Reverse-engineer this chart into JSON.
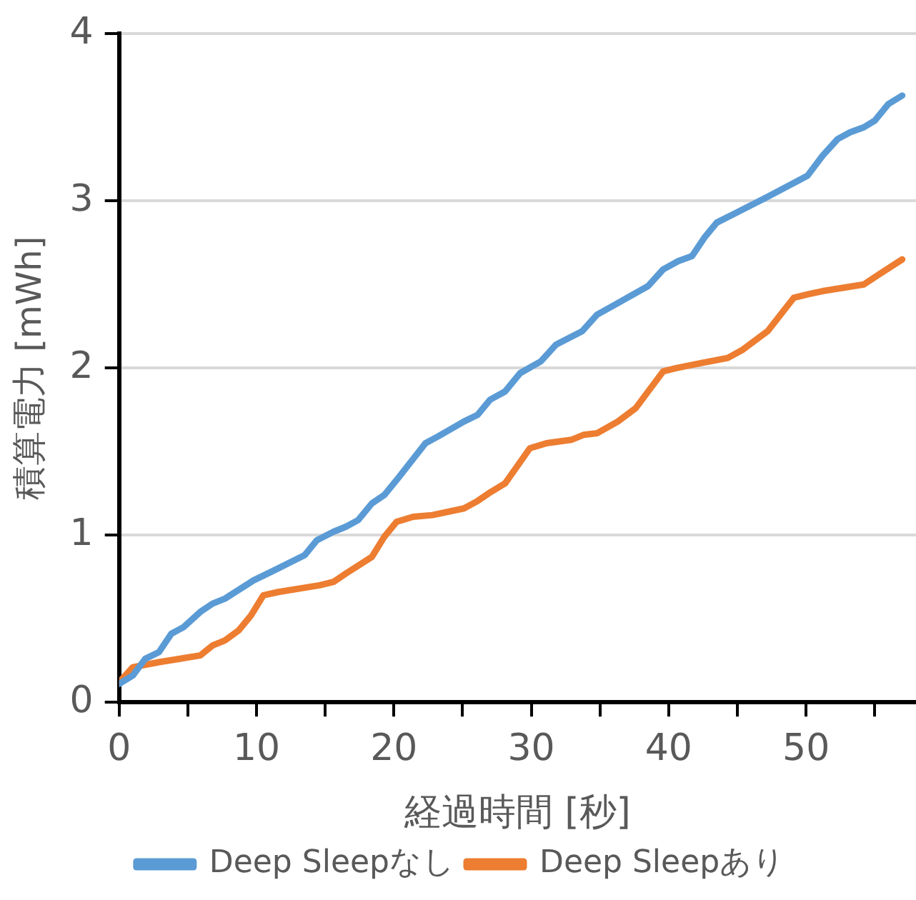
{
  "chart_data": {
    "type": "line",
    "xlabel": "経過時間 [秒]",
    "ylabel": "積算電力 [mWh]",
    "xlim": [
      0,
      58
    ],
    "xticks": [
      0,
      {
        "value": 5,
        "label": null
      },
      10,
      {
        "value": 15,
        "label": null
      },
      20,
      {
        "value": 25,
        "label": null
      },
      30,
      {
        "value": 35,
        "label": null
      },
      40,
      {
        "value": 45,
        "label": null
      },
      50,
      {
        "value": 55,
        "label": null
      }
    ],
    "ylim": [
      0,
      4
    ],
    "yticks": [
      0,
      1,
      2,
      3,
      4
    ],
    "grid": "y",
    "legend": "bottom",
    "marker": "none",
    "line_style": "solid",
    "series": [
      {
        "name": "Deep Sleepなし",
        "color": "#5b9bd5",
        "x": [
          0,
          1.0,
          1.9,
          2.9,
          3.8,
          4.7,
          5.9,
          6.8,
          7.7,
          9.8,
          11.3,
          13.5,
          14.4,
          15.6,
          16.5,
          17.4,
          18.4,
          19.3,
          20.2,
          22.3,
          23.2,
          25.1,
          26.1,
          27.0,
          28.1,
          29.2,
          30.7,
          31.8,
          33.7,
          34.8,
          35.9,
          38.5,
          39.6,
          40.7,
          41.7,
          42.6,
          43.5,
          44.7,
          47.1,
          50.1,
          51.2,
          52.3,
          53.2,
          54.2,
          55.0,
          56.0,
          57.0
        ],
        "values": [
          0.11,
          0.16,
          0.26,
          0.3,
          0.41,
          0.45,
          0.54,
          0.59,
          0.62,
          0.73,
          0.79,
          0.88,
          0.97,
          1.02,
          1.05,
          1.09,
          1.19,
          1.24,
          1.33,
          1.55,
          1.59,
          1.68,
          1.72,
          1.81,
          1.86,
          1.97,
          2.04,
          2.14,
          2.22,
          2.32,
          2.37,
          2.49,
          2.59,
          2.64,
          2.67,
          2.78,
          2.87,
          2.92,
          3.02,
          3.15,
          3.27,
          3.37,
          3.41,
          3.44,
          3.48,
          3.58,
          3.63
        ]
      },
      {
        "name": "Deep Sleepあり",
        "color": "#ed7d31",
        "x": [
          0,
          1.0,
          2.9,
          5.9,
          6.8,
          7.7,
          8.7,
          9.6,
          10.5,
          11.6,
          14.6,
          15.6,
          16.5,
          18.4,
          19.3,
          20.2,
          21.4,
          22.8,
          25.1,
          26.0,
          26.9,
          28.1,
          29.9,
          31.1,
          32.9,
          33.8,
          34.8,
          36.3,
          37.6,
          39.6,
          40.6,
          42.4,
          44.3,
          45.4,
          47.2,
          49.1,
          50.1,
          51.2,
          54.2,
          55.3,
          57.0
        ],
        "values": [
          0.12,
          0.21,
          0.24,
          0.28,
          0.34,
          0.37,
          0.43,
          0.52,
          0.64,
          0.66,
          0.7,
          0.72,
          0.77,
          0.87,
          0.99,
          1.08,
          1.11,
          1.12,
          1.16,
          1.2,
          1.25,
          1.31,
          1.52,
          1.55,
          1.57,
          1.6,
          1.61,
          1.68,
          1.76,
          1.98,
          2.0,
          2.03,
          2.06,
          2.11,
          2.22,
          2.42,
          2.44,
          2.46,
          2.5,
          2.56,
          2.65
        ]
      }
    ]
  }
}
